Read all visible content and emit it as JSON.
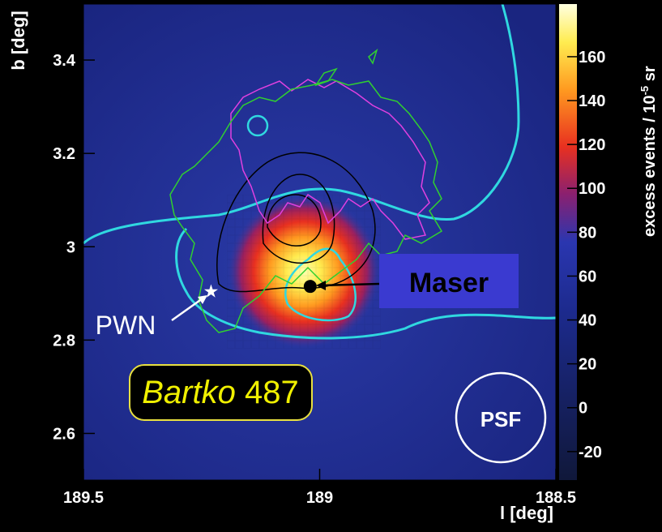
{
  "chart_data": {
    "type": "heatmap",
    "x_label": "l [deg]",
    "y_label": "b [deg]",
    "xlim": [
      189.5,
      188.5
    ],
    "xticks": [
      189.5,
      189,
      188.5
    ],
    "ylim": [
      2.5,
      3.52
    ],
    "yticks": [
      2.6,
      2.8,
      3,
      3.2,
      3.4
    ],
    "colorbar": {
      "label": "excess events / 10",
      "label_exponent": "-5",
      "label_unit": "sr",
      "zlim": [
        -33,
        184
      ],
      "ticks": [
        -20,
        0,
        20,
        40,
        60,
        80,
        100,
        120,
        140,
        160
      ]
    },
    "markers": [
      {
        "name": "Maser",
        "x": 189.02,
        "y": 2.915
      },
      {
        "name": "PWN",
        "x": 189.23,
        "y": 2.904
      }
    ],
    "annotations": {
      "psf": "PSF",
      "label_italic": "Bartko",
      "label_number": "487"
    }
  }
}
